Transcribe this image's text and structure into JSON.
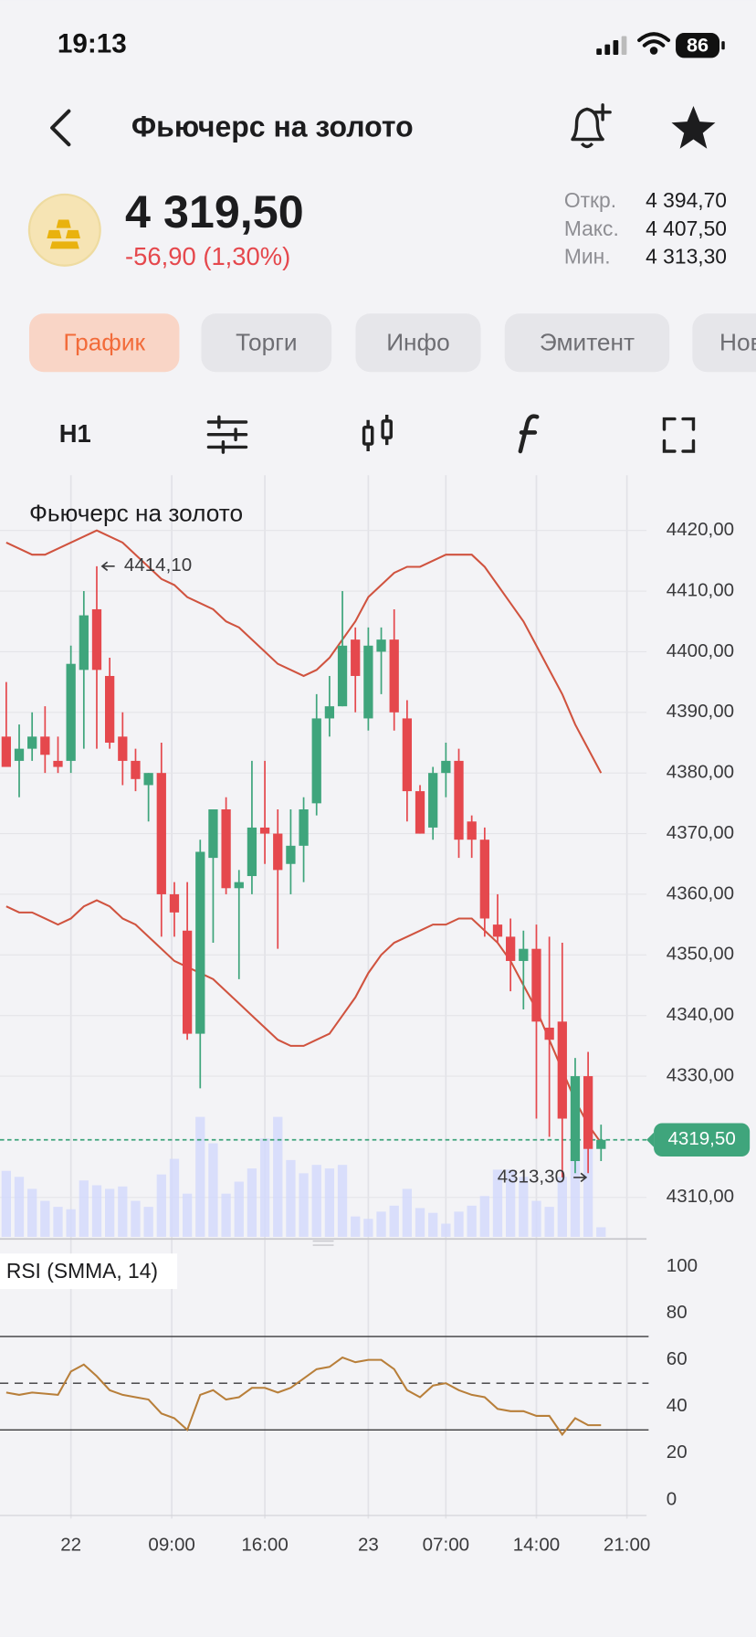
{
  "status": {
    "time": "19:13",
    "battery": 86
  },
  "header": {
    "title": "Фьючерс на золото"
  },
  "quote": {
    "price": "4 319,50",
    "change": "-56,90 (1,30%)",
    "stats": [
      {
        "label": "Откр.",
        "value": "4 394,70"
      },
      {
        "label": "Макс.",
        "value": "4 407,50"
      },
      {
        "label": "Мин.",
        "value": "4 313,30"
      }
    ]
  },
  "tabs": [
    "График",
    "Торги",
    "Инфо",
    "Эмитент",
    "Новости"
  ],
  "toolbar": {
    "interval": "H1"
  },
  "chart_data": [
    {
      "type": "candlestick",
      "title": "Фьючерс на золото",
      "open": [
        4386,
        4382,
        4384,
        4386,
        4382,
        4382,
        4397,
        4407,
        4396,
        4386,
        4382,
        4378,
        4380,
        4360,
        4354,
        4337,
        4366,
        4374,
        4361,
        4363,
        4371,
        4370,
        4365,
        4368,
        4375,
        4389,
        4391,
        4402,
        4389,
        4400,
        4402,
        4389,
        4377,
        4371,
        4380,
        4382,
        4372,
        4369,
        4355,
        4353,
        4349,
        4351,
        4338,
        4339,
        4316,
        4330,
        4318
      ],
      "high": [
        4395,
        4388,
        4390,
        4391,
        4386,
        4401,
        4410,
        4414.1,
        4399,
        4390,
        4384,
        4380,
        4385,
        4362,
        4362,
        4369,
        4374,
        4376,
        4364,
        4382,
        4382,
        4374,
        4374,
        4376,
        4393,
        4396,
        4410,
        4404,
        4404,
        4404,
        4407,
        4392,
        4378,
        4381,
        4385,
        4384,
        4373,
        4371,
        4360,
        4356,
        4354,
        4355,
        4353,
        4352,
        4333,
        4334,
        4322
      ],
      "low": [
        4381,
        4376,
        4382,
        4380,
        4380,
        4380,
        4384,
        4384,
        4384,
        4378,
        4377,
        4372,
        4353,
        4353,
        4336,
        4328,
        4352,
        4360,
        4346,
        4360,
        4365,
        4351,
        4360,
        4362,
        4373,
        4386,
        4391,
        4390,
        4387,
        4393,
        4387,
        4372,
        4370,
        4369,
        4376,
        4366,
        4366,
        4353,
        4352,
        4344,
        4341,
        4323,
        4320,
        4313.3,
        4314,
        4314,
        4316
      ],
      "close": [
        4381,
        4384,
        4386,
        4383,
        4381,
        4398,
        4406,
        4397,
        4385,
        4382,
        4379,
        4380,
        4360,
        4357,
        4337,
        4367,
        4374,
        4361,
        4362,
        4371,
        4370,
        4364,
        4368,
        4374,
        4389,
        4391,
        4401,
        4396,
        4401,
        4402,
        4390,
        4377,
        4370,
        4380,
        4382,
        4369,
        4369,
        4356,
        4353,
        4349,
        4351,
        4339,
        4336,
        4323,
        4330,
        4318,
        4319.5
      ],
      "up_color": "#3fa57c",
      "down_color": "#e5484d",
      "volume": [
        55,
        50,
        40,
        30,
        25,
        23,
        47,
        43,
        40,
        42,
        30,
        25,
        52,
        65,
        36,
        100,
        78,
        36,
        46,
        57,
        82,
        100,
        64,
        53,
        60,
        57,
        60,
        17,
        15,
        21,
        26,
        40,
        24,
        20,
        11,
        21,
        26,
        34,
        56,
        56,
        50,
        30,
        25,
        50,
        65,
        75,
        8
      ],
      "volume_color": "#d3d9fb",
      "bands": {
        "color": "#d0533f",
        "upper": [
          4418,
          4417,
          4416,
          4416,
          4417,
          4418,
          4419,
          4420,
          4419,
          4418,
          4416,
          4414,
          4412,
          4411,
          4409,
          4408,
          4407,
          4405,
          4404,
          4402,
          4400,
          4398,
          4397,
          4396,
          4397,
          4399,
          4402,
          4405,
          4409,
          4411,
          4413,
          4414,
          4414,
          4415,
          4416,
          4416,
          4416,
          4414,
          4411,
          4408,
          4405,
          4401,
          4397,
          4393,
          4388,
          4384,
          4380
        ],
        "lower": [
          4358,
          4357,
          4357,
          4356,
          4355,
          4356,
          4358,
          4359,
          4358,
          4356,
          4355,
          4353,
          4351,
          4349,
          4348,
          4347,
          4346,
          4344,
          4342,
          4340,
          4338,
          4336,
          4335,
          4335,
          4336,
          4337,
          4340,
          4343,
          4347,
          4350,
          4352,
          4353,
          4354,
          4355,
          4355,
          4356,
          4356,
          4354,
          4352,
          4349,
          4345,
          4341,
          4336,
          4331,
          4326,
          4322,
          4319
        ]
      },
      "ylim": [
        4303.5,
        4429.1
      ],
      "yticks": [
        {
          "value": 4420,
          "label": "4420,00"
        },
        {
          "value": 4410,
          "label": "4410,00"
        },
        {
          "value": 4400,
          "label": "4400,00"
        },
        {
          "value": 4390,
          "label": "4390,00"
        },
        {
          "value": 4380,
          "label": "4380,00"
        },
        {
          "value": 4370,
          "label": "4370,00"
        },
        {
          "value": 4360,
          "label": "4360,00"
        },
        {
          "value": 4350,
          "label": "4350,00"
        },
        {
          "value": 4340,
          "label": "4340,00"
        },
        {
          "value": 4330,
          "label": "4330,00"
        },
        {
          "value": 4310,
          "label": "4310,00"
        }
      ],
      "xticks": [
        {
          "value": 5,
          "label": "22"
        },
        {
          "value": 12.8,
          "label": "09:00"
        },
        {
          "value": 20,
          "label": "16:00"
        },
        {
          "value": 28,
          "label": "23"
        },
        {
          "value": 34,
          "label": "07:00"
        },
        {
          "value": 41,
          "label": "14:00"
        },
        {
          "value": 48,
          "label": "21:00"
        }
      ],
      "last_price": {
        "value": 4319.5,
        "label": "4319,50",
        "color": "#3fa57c"
      },
      "annotations": [
        {
          "value": 4414.1,
          "label": "4414,10"
        },
        {
          "value": 4313.3,
          "label": "4313,30"
        }
      ],
      "grid": true
    },
    {
      "type": "line",
      "title": "RSI (SMMA, 14)",
      "color": "#b87f3a",
      "values": [
        46,
        45,
        46,
        45.5,
        45,
        55,
        58,
        53,
        47,
        45,
        44,
        43,
        37,
        35,
        30,
        45,
        47,
        43,
        44,
        48,
        48,
        46,
        48,
        52,
        56,
        57,
        61,
        59,
        60,
        60,
        56,
        47,
        44,
        49,
        50,
        47,
        45,
        44,
        39,
        38,
        38,
        36,
        36,
        28,
        35,
        32,
        32
      ],
      "ylim": [
        -8,
        106
      ],
      "yticks": [
        100,
        80,
        60,
        40,
        20,
        0
      ],
      "levels": [
        70,
        50,
        30
      ],
      "level_styles": [
        "solid",
        "dashed",
        "solid"
      ]
    }
  ]
}
